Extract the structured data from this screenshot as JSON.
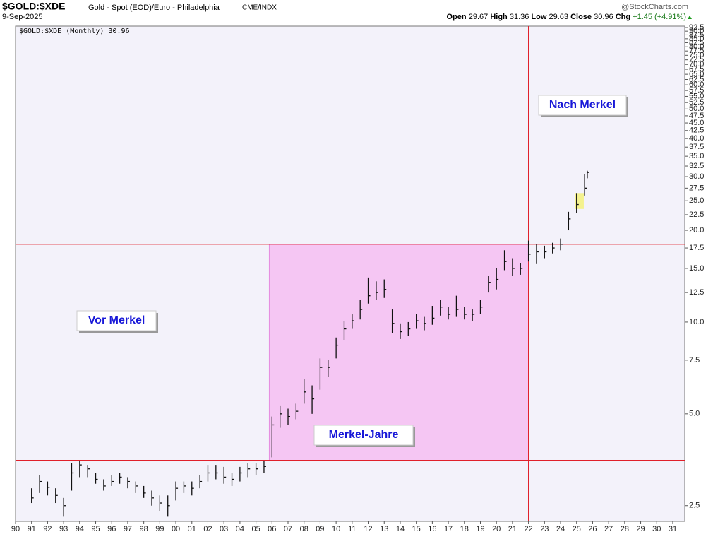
{
  "chart_data": {
    "type": "hlc",
    "symbol": "$GOLD:$XDE",
    "description": "Gold - Spot (EOD)/Euro - Philadelphia",
    "exchange": "CME/INDX",
    "date": "9-Sep-2025",
    "source": "@StockCharts.com",
    "quote": {
      "open_label": "Open",
      "open": 29.67,
      "high_label": "High",
      "high": 31.36,
      "low_label": "Low",
      "low": 29.63,
      "close_label": "Close",
      "close": 30.96,
      "chg_label": "Chg",
      "chg": "+1.45 (+4.91%)"
    },
    "legend_label": "$GOLD:$XDE (Monthly) 30.96",
    "color": "#111111",
    "log_scale": true,
    "grid": false,
    "x": [
      1991,
      1991.5,
      1992,
      1992.5,
      1993,
      1993.5,
      1994,
      1994.5,
      1995,
      1995.5,
      1996,
      1996.5,
      1997,
      1997.5,
      1998,
      1998.5,
      1999,
      1999.5,
      2000,
      2000.5,
      2001,
      2001.5,
      2002,
      2002.5,
      2003,
      2003.5,
      2004,
      2004.5,
      2005,
      2005.5,
      2006,
      2006.5,
      2007,
      2007.5,
      2008,
      2008.5,
      2009,
      2009.5,
      2010,
      2010.5,
      2011,
      2011.5,
      2012,
      2012.5,
      2013,
      2013.5,
      2014,
      2014.5,
      2015,
      2015.5,
      2016,
      2016.5,
      2017,
      2017.5,
      2018,
      2018.5,
      2019,
      2019.5,
      2020,
      2020.5,
      2021,
      2021.5,
      2022,
      2022.5,
      2023,
      2023.5,
      2024,
      2024.5,
      2025,
      2025.5,
      2025.67
    ],
    "close": [
      2.65,
      3.0,
      2.87,
      2.7,
      2.5,
      3.2,
      3.4,
      3.3,
      3.05,
      2.9,
      3.0,
      3.1,
      3.0,
      2.9,
      2.75,
      2.65,
      2.55,
      2.5,
      2.85,
      2.9,
      2.85,
      3.0,
      3.2,
      3.2,
      3.1,
      3.05,
      3.2,
      3.3,
      3.3,
      3.36,
      4.6,
      5.0,
      4.9,
      5.1,
      5.9,
      5.6,
      7.1,
      7.1,
      8.4,
      9.5,
      10.1,
      11.0,
      12.2,
      12.5,
      12.8,
      9.9,
      9.3,
      9.5,
      10.1,
      9.9,
      10.3,
      11.2,
      10.6,
      11.0,
      10.6,
      10.6,
      11.2,
      13.5,
      13.8,
      15.8,
      15.0,
      15.0,
      16.7,
      17.0,
      17.0,
      17.5,
      18.0,
      21.8,
      24.3,
      27.5,
      30.96
    ],
    "high": [
      2.85,
      3.15,
      3.0,
      2.85,
      2.65,
      3.45,
      3.5,
      3.4,
      3.2,
      3.05,
      3.15,
      3.2,
      3.1,
      3.0,
      2.9,
      2.8,
      2.7,
      2.7,
      3.0,
      3.0,
      3.0,
      3.15,
      3.4,
      3.4,
      3.35,
      3.2,
      3.35,
      3.45,
      3.45,
      3.5,
      4.9,
      5.3,
      5.2,
      5.4,
      6.5,
      6.2,
      7.6,
      7.5,
      8.9,
      10.1,
      10.6,
      11.8,
      14.0,
      13.6,
      13.8,
      11.0,
      9.9,
      10.0,
      10.6,
      10.4,
      11.3,
      11.8,
      11.2,
      12.2,
      11.2,
      11.0,
      11.8,
      14.2,
      15.0,
      17.2,
      16.2,
      15.6,
      18.5,
      18.0,
      17.8,
      18.2,
      18.8,
      23.0,
      26.5,
      30.5,
      31.36
    ],
    "low": [
      2.55,
      2.75,
      2.7,
      2.55,
      2.3,
      2.8,
      3.1,
      3.1,
      2.95,
      2.8,
      2.9,
      2.95,
      2.85,
      2.75,
      2.65,
      2.5,
      2.4,
      2.3,
      2.6,
      2.75,
      2.7,
      2.85,
      3.0,
      3.05,
      2.95,
      2.9,
      3.0,
      3.1,
      3.15,
      3.2,
      3.6,
      4.5,
      4.6,
      4.8,
      5.4,
      5.0,
      6.0,
      6.6,
      7.6,
      8.7,
      9.5,
      10.2,
      11.5,
      11.8,
      12.0,
      9.2,
      8.8,
      9.0,
      9.5,
      9.4,
      9.8,
      10.5,
      10.2,
      10.4,
      10.2,
      10.1,
      10.6,
      12.5,
      12.8,
      14.8,
      14.2,
      14.3,
      15.8,
      15.5,
      16.2,
      16.8,
      17.2,
      20.0,
      22.8,
      26.0,
      29.63
    ],
    "xlim": [
      1990,
      2031.75
    ],
    "ylim": [
      2.22,
      93.5
    ],
    "xticks": [
      {
        "value": 1990,
        "label": "90"
      },
      {
        "value": 1991,
        "label": "91"
      },
      {
        "value": 1992,
        "label": "92"
      },
      {
        "value": 1993,
        "label": "93"
      },
      {
        "value": 1994,
        "label": "94"
      },
      {
        "value": 1995,
        "label": "95"
      },
      {
        "value": 1996,
        "label": "96"
      },
      {
        "value": 1997,
        "label": "97"
      },
      {
        "value": 1998,
        "label": "98"
      },
      {
        "value": 1999,
        "label": "99"
      },
      {
        "value": 2000,
        "label": "00"
      },
      {
        "value": 2001,
        "label": "01"
      },
      {
        "value": 2002,
        "label": "02"
      },
      {
        "value": 2003,
        "label": "03"
      },
      {
        "value": 2004,
        "label": "04"
      },
      {
        "value": 2005,
        "label": "05"
      },
      {
        "value": 2006,
        "label": "06"
      },
      {
        "value": 2007,
        "label": "07"
      },
      {
        "value": 2008,
        "label": "08"
      },
      {
        "value": 2009,
        "label": "09"
      },
      {
        "value": 2010,
        "label": "10"
      },
      {
        "value": 2011,
        "label": "11"
      },
      {
        "value": 2012,
        "label": "12"
      },
      {
        "value": 2013,
        "label": "13"
      },
      {
        "value": 2014,
        "label": "14"
      },
      {
        "value": 2015,
        "label": "15"
      },
      {
        "value": 2016,
        "label": "16"
      },
      {
        "value": 2017,
        "label": "17"
      },
      {
        "value": 2018,
        "label": "18"
      },
      {
        "value": 2019,
        "label": "19"
      },
      {
        "value": 2020,
        "label": "20"
      },
      {
        "value": 2021,
        "label": "21"
      },
      {
        "value": 2022,
        "label": "22"
      },
      {
        "value": 2023,
        "label": "23"
      },
      {
        "value": 2024,
        "label": "24"
      },
      {
        "value": 2025,
        "label": "25"
      },
      {
        "value": 2026,
        "label": "26"
      },
      {
        "value": 2027,
        "label": "27"
      },
      {
        "value": 2028,
        "label": "28"
      },
      {
        "value": 2029,
        "label": "29"
      },
      {
        "value": 2030,
        "label": "30"
      },
      {
        "value": 2031,
        "label": "31"
      }
    ],
    "yticks": [
      2.5,
      {
        "value": 5,
        "label": "5.0"
      },
      7.5,
      {
        "value": 10,
        "label": "10.0"
      },
      12.5,
      {
        "value": 15,
        "label": "15.0"
      },
      17.5,
      {
        "value": 20,
        "label": "20.0"
      },
      22.5,
      {
        "value": 25,
        "label": "25.0"
      },
      27.5,
      {
        "value": 30,
        "label": "30.0"
      },
      32.5,
      {
        "value": 35,
        "label": "35.0"
      },
      37.5,
      {
        "value": 40,
        "label": "40.0"
      },
      42.5,
      {
        "value": 45,
        "label": "45.0"
      },
      47.5,
      {
        "value": 50,
        "label": "50.0"
      },
      52.5,
      {
        "value": 55,
        "label": "55.0"
      },
      57.5,
      {
        "value": 60,
        "label": "60.0"
      },
      62.5,
      {
        "value": 65,
        "label": "65.0"
      },
      67.5,
      {
        "value": 70,
        "label": "70.0"
      },
      72.5,
      {
        "value": 75,
        "label": "75.0"
      },
      77.5,
      {
        "value": 80,
        "label": "80.0"
      },
      82.5,
      {
        "value": 85,
        "label": "85.0"
      },
      87.5,
      {
        "value": 90,
        "label": "90.0"
      },
      92.5
    ],
    "hlines": [
      18.0,
      3.52
    ],
    "vlines": [
      2022.0
    ],
    "line_color": "#e0202a",
    "region": {
      "x": [
        2005.83,
        2022.0
      ],
      "y": [
        3.52,
        18.0
      ],
      "color": "#f5c6f3"
    },
    "highlight": {
      "x": [
        2024.9,
        2025.45
      ],
      "y": [
        23.5,
        26.5
      ],
      "color": "#f3f27a"
    },
    "annotations": [
      "Vor Merkel",
      "Merkel-Jahre",
      "Nach Merkel"
    ]
  }
}
